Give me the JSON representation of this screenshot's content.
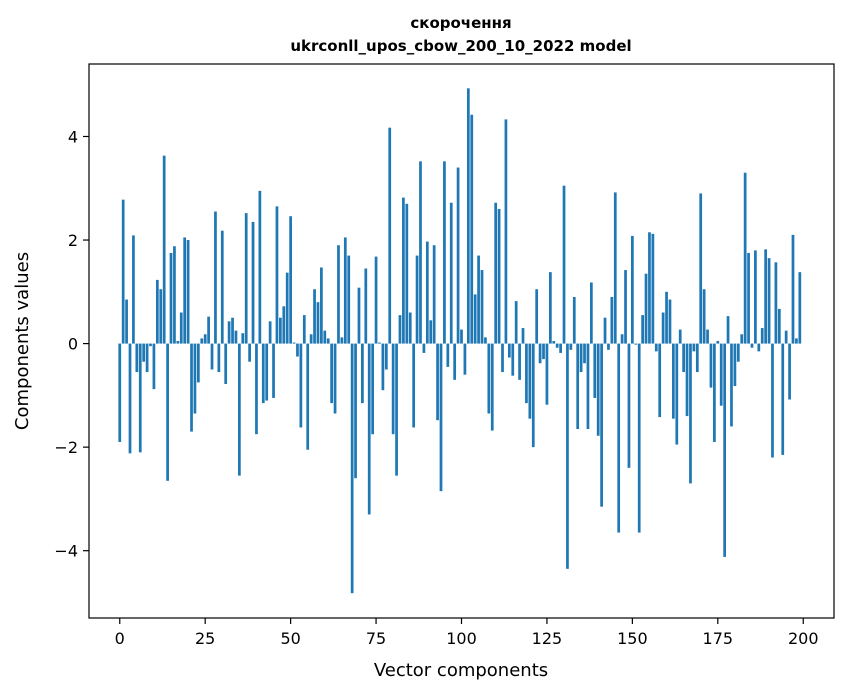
{
  "chart_data": {
    "type": "bar",
    "title_lines": [
      "скорочення",
      "ukrconll_upos_cbow_200_10_2022 model"
    ],
    "xlabel": "Vector components",
    "ylabel": "Components values",
    "xlim": [
      -9,
      209
    ],
    "ylim": [
      -5.3,
      5.4
    ],
    "xticks": [
      0,
      25,
      50,
      75,
      100,
      125,
      150,
      175,
      200
    ],
    "yticks": [
      -4,
      -2,
      0,
      2,
      4
    ],
    "ytick_labels": [
      "−4",
      "−2",
      "0",
      "2",
      "4"
    ],
    "grid": false,
    "bar_color": "#1f77b4",
    "x": [
      0,
      1,
      2,
      3,
      4,
      5,
      6,
      7,
      8,
      9,
      10,
      11,
      12,
      13,
      14,
      15,
      16,
      17,
      18,
      19,
      20,
      21,
      22,
      23,
      24,
      25,
      26,
      27,
      28,
      29,
      30,
      31,
      32,
      33,
      34,
      35,
      36,
      37,
      38,
      39,
      40,
      41,
      42,
      43,
      44,
      45,
      46,
      47,
      48,
      49,
      50,
      51,
      52,
      53,
      54,
      55,
      56,
      57,
      58,
      59,
      60,
      61,
      62,
      63,
      64,
      65,
      66,
      67,
      68,
      69,
      70,
      71,
      72,
      73,
      74,
      75,
      76,
      77,
      78,
      79,
      80,
      81,
      82,
      83,
      84,
      85,
      86,
      87,
      88,
      89,
      90,
      91,
      92,
      93,
      94,
      95,
      96,
      97,
      98,
      99,
      100,
      101,
      102,
      103,
      104,
      105,
      106,
      107,
      108,
      109,
      110,
      111,
      112,
      113,
      114,
      115,
      116,
      117,
      118,
      119,
      120,
      121,
      122,
      123,
      124,
      125,
      126,
      127,
      128,
      129,
      130,
      131,
      132,
      133,
      134,
      135,
      136,
      137,
      138,
      139,
      140,
      141,
      142,
      143,
      144,
      145,
      146,
      147,
      148,
      149,
      150,
      151,
      152,
      153,
      154,
      155,
      156,
      157,
      158,
      159,
      160,
      161,
      162,
      163,
      164,
      165,
      166,
      167,
      168,
      169,
      170,
      171,
      172,
      173,
      174,
      175,
      176,
      177,
      178,
      179,
      180,
      181,
      182,
      183,
      184,
      185,
      186,
      187,
      188,
      189,
      190,
      191,
      192,
      193,
      194,
      195,
      196,
      197,
      198,
      199
    ],
    "values": [
      -1.9,
      2.78,
      0.85,
      -2.12,
      2.09,
      -0.55,
      -2.1,
      -0.35,
      -0.55,
      -0.05,
      -0.88,
      1.23,
      1.05,
      3.63,
      -2.65,
      1.75,
      1.88,
      0.05,
      0.6,
      2.05,
      2.0,
      -1.7,
      -1.35,
      -0.75,
      0.1,
      0.18,
      0.52,
      -0.5,
      2.55,
      -0.55,
      2.18,
      -0.78,
      0.43,
      0.5,
      0.25,
      -2.55,
      0.2,
      2.52,
      -0.35,
      2.35,
      -1.75,
      2.95,
      -1.15,
      -1.1,
      0.43,
      -1.05,
      2.65,
      0.5,
      0.72,
      1.37,
      2.46,
      0.02,
      -0.25,
      -1.62,
      0.55,
      -2.05,
      0.18,
      1.05,
      0.8,
      1.47,
      0.25,
      0.1,
      -1.15,
      -1.35,
      1.9,
      0.12,
      2.05,
      1.7,
      -4.82,
      -2.6,
      1.08,
      -1.15,
      1.45,
      -3.3,
      -1.75,
      1.68,
      0.02,
      -0.9,
      -0.5,
      4.17,
      -1.75,
      -2.55,
      0.55,
      2.82,
      2.7,
      0.6,
      -1.62,
      1.7,
      3.52,
      -0.18,
      1.97,
      0.45,
      1.9,
      -1.48,
      -2.85,
      3.52,
      -0.45,
      2.72,
      -0.7,
      3.4,
      0.27,
      -0.6,
      4.93,
      4.42,
      0.95,
      1.7,
      1.42,
      0.12,
      -1.35,
      -1.68,
      2.72,
      2.6,
      -0.55,
      4.33,
      -0.27,
      -0.62,
      0.82,
      -0.7,
      0.3,
      -1.15,
      -1.45,
      -2.0,
      1.05,
      -0.38,
      -0.3,
      -1.18,
      1.38,
      0.05,
      -0.08,
      -0.18,
      3.05,
      -4.35,
      -0.12,
      0.9,
      -1.65,
      -0.55,
      -0.38,
      -1.65,
      1.18,
      -1.05,
      -1.78,
      -3.15,
      0.5,
      -0.12,
      0.9,
      2.92,
      -3.65,
      0.18,
      1.42,
      -2.4,
      2.08,
      -0.02,
      -3.65,
      0.55,
      1.35,
      2.15,
      2.12,
      -0.15,
      -1.42,
      0.6,
      1.0,
      0.85,
      -1.45,
      -1.95,
      0.27,
      -0.55,
      -1.4,
      -2.7,
      -0.15,
      -0.55,
      2.9,
      1.05,
      0.27,
      -0.85,
      -1.9,
      0.05,
      -1.2,
      -4.12,
      0.53,
      -1.6,
      -0.82,
      -0.35,
      0.18,
      3.3,
      1.75,
      -0.08,
      1.8,
      -0.15,
      0.3,
      1.82,
      1.65,
      -2.2,
      1.57,
      0.67,
      -2.15,
      0.25,
      -1.08,
      2.1,
      0.1,
      1.38
    ]
  }
}
